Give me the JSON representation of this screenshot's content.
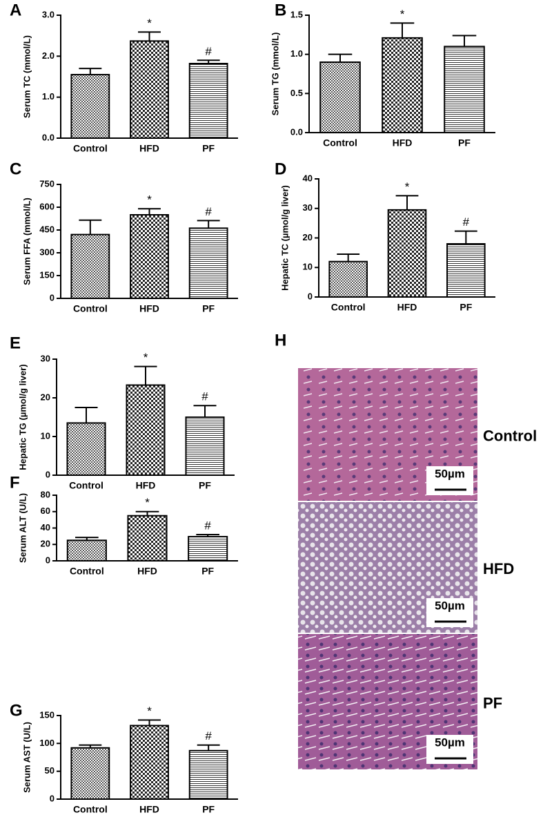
{
  "chart_data": [
    {
      "type": "bar",
      "panel": "A",
      "ylabel": "Serum TC (mmol/L)",
      "categories": [
        "Control",
        "HFD",
        "PF"
      ],
      "values": [
        1.55,
        2.37,
        1.82
      ],
      "errors": [
        0.15,
        0.22,
        0.08
      ],
      "annotations": [
        null,
        "*",
        "#"
      ],
      "ylim": [
        0,
        3
      ],
      "yticks": [
        {
          "value": 0,
          "label": "0.0"
        },
        {
          "value": 1,
          "label": "1.0"
        },
        {
          "value": 2,
          "label": "2.0"
        },
        {
          "value": 3,
          "label": "3.0"
        }
      ]
    },
    {
      "type": "bar",
      "panel": "B",
      "ylabel": "Serum TG (mmol/L)",
      "categories": [
        "Control",
        "HFD",
        "PF"
      ],
      "values": [
        0.9,
        1.21,
        1.1
      ],
      "errors": [
        0.1,
        0.19,
        0.14
      ],
      "annotations": [
        null,
        "*",
        null
      ],
      "ylim": [
        0,
        1.5
      ],
      "yticks": [
        {
          "value": 0,
          "label": "0.0"
        },
        0.5,
        {
          "value": 1,
          "label": "1.0"
        },
        1.5
      ]
    },
    {
      "type": "bar",
      "panel": "C",
      "ylabel": "Serum FFA (mmol/L)",
      "categories": [
        "Control",
        "HFD",
        "PF"
      ],
      "values": [
        420,
        550,
        462
      ],
      "errors": [
        95,
        40,
        50
      ],
      "annotations": [
        null,
        "*",
        "#"
      ],
      "ylim": [
        0,
        750
      ],
      "yticks": [
        0,
        150,
        300,
        450,
        600,
        750
      ]
    },
    {
      "type": "bar",
      "panel": "D",
      "ylabel": "Hepatic TC (µmol/g liver)",
      "categories": [
        "Control",
        "HFD",
        "PF"
      ],
      "values": [
        12,
        29.5,
        18
      ],
      "errors": [
        2.5,
        4.8,
        4.3
      ],
      "annotations": [
        null,
        "*",
        "#"
      ],
      "ylim": [
        0,
        40
      ],
      "yticks": [
        0,
        10,
        20,
        30,
        40
      ]
    },
    {
      "type": "bar",
      "panel": "E",
      "ylabel": "Hepatic TG (µmol/g liver)",
      "categories": [
        "Control",
        "HFD",
        "PF"
      ],
      "values": [
        13.5,
        23.3,
        15
      ],
      "errors": [
        4,
        4.8,
        3
      ],
      "annotations": [
        null,
        "*",
        "#"
      ],
      "ylim": [
        0,
        30
      ],
      "yticks": [
        0,
        10,
        20,
        30
      ]
    },
    {
      "type": "bar",
      "panel": "F",
      "ylabel": "Serum ALT (U/L)",
      "categories": [
        "Control",
        "HFD",
        "PF"
      ],
      "values": [
        25,
        55,
        29.5
      ],
      "errors": [
        3.5,
        5,
        2.5
      ],
      "annotations": [
        null,
        "*",
        "#"
      ],
      "ylim": [
        0,
        80
      ],
      "yticks": [
        0,
        20,
        40,
        60,
        80
      ]
    },
    {
      "type": "bar",
      "panel": "G",
      "ylabel": "Serum AST (U/L)",
      "categories": [
        "Control",
        "HFD",
        "PF"
      ],
      "values": [
        92,
        132,
        87
      ],
      "errors": [
        5,
        10,
        10
      ],
      "annotations": [
        null,
        "*",
        "#"
      ],
      "ylim": [
        0,
        150
      ],
      "yticks": [
        0,
        50,
        100,
        150
      ]
    }
  ],
  "panel_h": {
    "letter": "H",
    "images": [
      {
        "label": "Control",
        "scale_bar": "50µm"
      },
      {
        "label": "HFD",
        "scale_bar": "50µm"
      },
      {
        "label": "PF",
        "scale_bar": "50µm"
      }
    ]
  }
}
